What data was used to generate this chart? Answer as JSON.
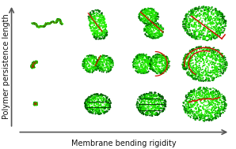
{
  "title": "",
  "xlabel": "Membrane bending rigidity",
  "ylabel": "Polymer persistence length",
  "background_color": "#ffffff",
  "xlabel_fontsize": 7,
  "ylabel_fontsize": 7,
  "grid_rows": 3,
  "grid_cols": 4,
  "green_bright": "#22ee00",
  "green_mid": "#11bb00",
  "green_dark": "#007700",
  "green_edge": "#005500",
  "red_line": "#cc1100",
  "dot_size": 1.8,
  "dot_size_small": 1.2
}
